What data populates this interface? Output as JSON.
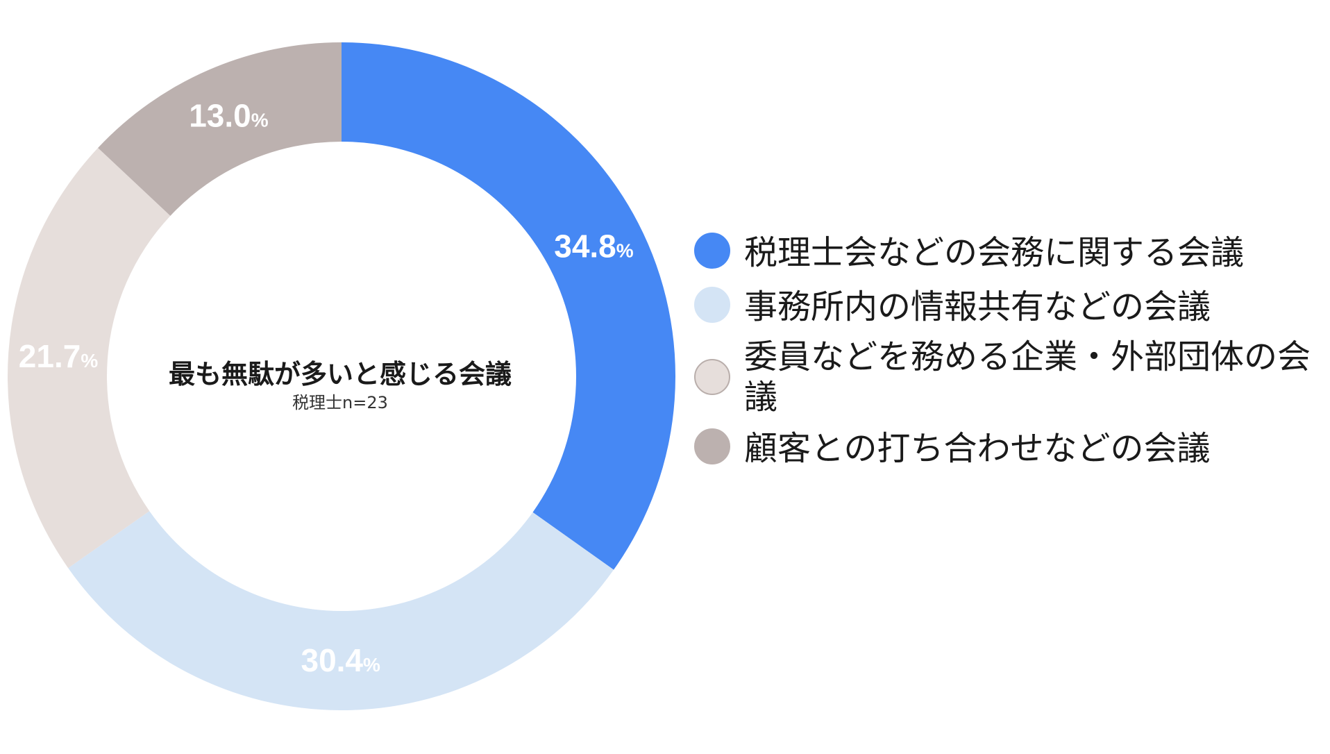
{
  "chart_data": {
    "type": "pie",
    "title": "最も無駄が多いと感じる会議",
    "subtitle": "税理士n=23",
    "unit": "%",
    "legend_position": "right",
    "categories": [
      "税理士会などの会務に関する会議",
      "事務所内の情報共有などの会議",
      "委員などを務める企業・外部団体の会議",
      "顧客との打ち合わせなどの会議"
    ],
    "values": [
      34.8,
      30.4,
      21.7,
      13.0
    ],
    "value_labels": [
      "34.8",
      "30.4",
      "21.7",
      "13.0"
    ],
    "colors": [
      "#4688F4",
      "#D4E4F5",
      "#E6DEDB",
      "#BCB1AF"
    ],
    "swatch_borders": [
      "#4688F4",
      "#D4E4F5",
      "#B9AEAB",
      "#BCB1AF"
    ],
    "label_color": "#FFFFFF"
  }
}
